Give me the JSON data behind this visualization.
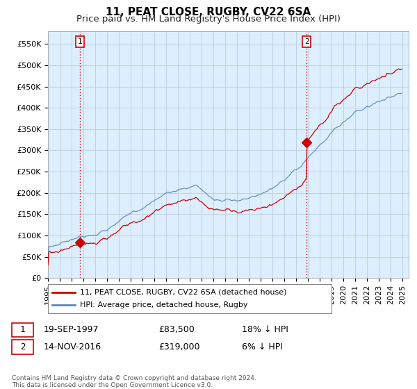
{
  "title": "11, PEAT CLOSE, RUGBY, CV22 6SA",
  "subtitle": "Price paid vs. HM Land Registry's House Price Index (HPI)",
  "ylabel_values": [
    "£0",
    "£50K",
    "£100K",
    "£150K",
    "£200K",
    "£250K",
    "£300K",
    "£350K",
    "£400K",
    "£450K",
    "£500K",
    "£550K"
  ],
  "yticks": [
    0,
    50000,
    100000,
    150000,
    200000,
    250000,
    300000,
    350000,
    400000,
    450000,
    500000,
    550000
  ],
  "ylim": [
    0,
    580000
  ],
  "xlim_start": 1995.0,
  "xlim_end": 2025.5,
  "xtick_years": [
    1995,
    1996,
    1997,
    1998,
    1999,
    2000,
    2001,
    2002,
    2003,
    2004,
    2005,
    2006,
    2007,
    2008,
    2009,
    2010,
    2011,
    2012,
    2013,
    2014,
    2015,
    2016,
    2017,
    2018,
    2019,
    2020,
    2021,
    2022,
    2023,
    2024,
    2025
  ],
  "sale1_x": 1997.72,
  "sale1_y": 83500,
  "sale1_label": "1",
  "sale2_x": 2016.87,
  "sale2_y": 319000,
  "sale2_label": "2",
  "vline_color": "#cc0000",
  "hpi_color": "#5588bb",
  "price_color": "#cc0000",
  "plot_bg_color": "#ddeeff",
  "background_color": "#ffffff",
  "grid_color": "#bbccdd",
  "legend_entry1": "11, PEAT CLOSE, RUGBY, CV22 6SA (detached house)",
  "legend_entry2": "HPI: Average price, detached house, Rugby",
  "annotation1_date": "19-SEP-1997",
  "annotation1_price": "£83,500",
  "annotation1_hpi": "18% ↓ HPI",
  "annotation2_date": "14-NOV-2016",
  "annotation2_price": "£319,000",
  "annotation2_hpi": "6% ↓ HPI",
  "footer": "Contains HM Land Registry data © Crown copyright and database right 2024.\nThis data is licensed under the Open Government Licence v3.0.",
  "title_fontsize": 11,
  "subtitle_fontsize": 9.5,
  "tick_fontsize": 8,
  "annot_fontsize": 9
}
